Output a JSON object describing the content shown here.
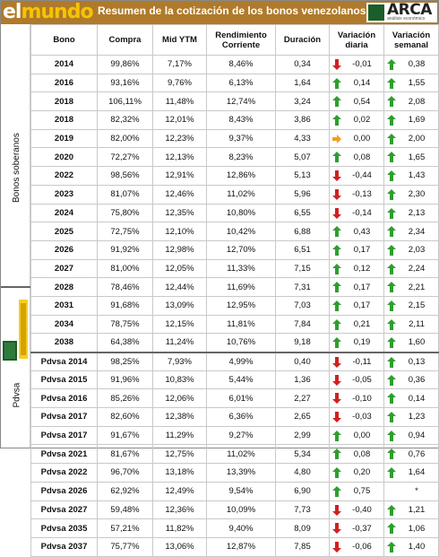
{
  "header": {
    "logo_el": "el",
    "logo_mundo": "mundo",
    "title": "Resumen de la cotización de los bonos venezolanos",
    "arca_label": "ARCA",
    "arca_sub": "análisis económico"
  },
  "columns": [
    "Bono",
    "Compra",
    "Mid YTM",
    "Rendimiento Corriente",
    "Duración",
    "Variación diaria",
    "Variación semanal"
  ],
  "groups": {
    "soberanos": "Bonos soberanos",
    "pdvsa": "Pdvsa"
  },
  "colors": {
    "up": "#2e9e2e",
    "down": "#d02020",
    "flat": "#f0a020",
    "header": "#b07a2a"
  },
  "rows": [
    {
      "bono": "2014",
      "compra": "99,86%",
      "ytm": "7,17%",
      "rend": "8,46%",
      "dur": "0,34",
      "vd_dir": "down",
      "vd": "-0,01",
      "vs_dir": "up",
      "vs": "0,38"
    },
    {
      "bono": "2016",
      "compra": "93,16%",
      "ytm": "9,76%",
      "rend": "6,13%",
      "dur": "1,64",
      "vd_dir": "up",
      "vd": "0,14",
      "vs_dir": "up",
      "vs": "1,55"
    },
    {
      "bono": "2018",
      "compra": "106,11%",
      "ytm": "11,48%",
      "rend": "12,74%",
      "dur": "3,24",
      "vd_dir": "up",
      "vd": "0,54",
      "vs_dir": "up",
      "vs": "2,08"
    },
    {
      "bono": "2018",
      "compra": "82,32%",
      "ytm": "12,01%",
      "rend": "8,43%",
      "dur": "3,86",
      "vd_dir": "up",
      "vd": "0,02",
      "vs_dir": "up",
      "vs": "1,69"
    },
    {
      "bono": "2019",
      "compra": "82,00%",
      "ytm": "12,23%",
      "rend": "9,37%",
      "dur": "4,33",
      "vd_dir": "flat",
      "vd": "0,00",
      "vs_dir": "up",
      "vs": "2,00"
    },
    {
      "bono": "2020",
      "compra": "72,27%",
      "ytm": "12,13%",
      "rend": "8,23%",
      "dur": "5,07",
      "vd_dir": "up",
      "vd": "0,08",
      "vs_dir": "up",
      "vs": "1,65"
    },
    {
      "bono": "2022",
      "compra": "98,56%",
      "ytm": "12,91%",
      "rend": "12,86%",
      "dur": "5,13",
      "vd_dir": "down",
      "vd": "-0,44",
      "vs_dir": "up",
      "vs": "1,43"
    },
    {
      "bono": "2023",
      "compra": "81,07%",
      "ytm": "12,46%",
      "rend": "11,02%",
      "dur": "5,96",
      "vd_dir": "down",
      "vd": "-0,13",
      "vs_dir": "up",
      "vs": "2,30"
    },
    {
      "bono": "2024",
      "compra": "75,80%",
      "ytm": "12,35%",
      "rend": "10,80%",
      "dur": "6,55",
      "vd_dir": "down",
      "vd": "-0,14",
      "vs_dir": "up",
      "vs": "2,13"
    },
    {
      "bono": "2025",
      "compra": "72,75%",
      "ytm": "12,10%",
      "rend": "10,42%",
      "dur": "6,88",
      "vd_dir": "up",
      "vd": "0,43",
      "vs_dir": "up",
      "vs": "2,34"
    },
    {
      "bono": "2026",
      "compra": "91,92%",
      "ytm": "12,98%",
      "rend": "12,70%",
      "dur": "6,51",
      "vd_dir": "up",
      "vd": "0,17",
      "vs_dir": "up",
      "vs": "2,03"
    },
    {
      "bono": "2027",
      "compra": "81,00%",
      "ytm": "12,05%",
      "rend": "11,33%",
      "dur": "7,15",
      "vd_dir": "up",
      "vd": "0,12",
      "vs_dir": "up",
      "vs": "2,24"
    },
    {
      "bono": "2028",
      "compra": "78,46%",
      "ytm": "12,44%",
      "rend": "11,69%",
      "dur": "7,31",
      "vd_dir": "up",
      "vd": "0,17",
      "vs_dir": "up",
      "vs": "2,21"
    },
    {
      "bono": "2031",
      "compra": "91,68%",
      "ytm": "13,09%",
      "rend": "12,95%",
      "dur": "7,03",
      "vd_dir": "up",
      "vd": "0,17",
      "vs_dir": "up",
      "vs": "2,15"
    },
    {
      "bono": "2034",
      "compra": "78,75%",
      "ytm": "12,15%",
      "rend": "11,81%",
      "dur": "7,84",
      "vd_dir": "up",
      "vd": "0,21",
      "vs_dir": "up",
      "vs": "2,11"
    },
    {
      "bono": "2038",
      "compra": "64,38%",
      "ytm": "11,24%",
      "rend": "10,76%",
      "dur": "9,18",
      "vd_dir": "up",
      "vd": "0,19",
      "vs_dir": "up",
      "vs": "1,60"
    },
    {
      "bono": "Pdvsa 2014",
      "compra": "98,25%",
      "ytm": "7,93%",
      "rend": "4,99%",
      "dur": "0,40",
      "vd_dir": "down",
      "vd": "-0,11",
      "vs_dir": "up",
      "vs": "0,13"
    },
    {
      "bono": "Pdvsa 2015",
      "compra": "91,96%",
      "ytm": "10,83%",
      "rend": "5,44%",
      "dur": "1,36",
      "vd_dir": "down",
      "vd": "-0,05",
      "vs_dir": "up",
      "vs": "0,36"
    },
    {
      "bono": "Pdvsa 2016",
      "compra": "85,26%",
      "ytm": "12,06%",
      "rend": "6,01%",
      "dur": "2,27",
      "vd_dir": "down",
      "vd": "-0,10",
      "vs_dir": "up",
      "vs": "0,14"
    },
    {
      "bono": "Pdvsa 2017",
      "compra": "82,60%",
      "ytm": "12,38%",
      "rend": "6,36%",
      "dur": "2,65",
      "vd_dir": "down",
      "vd": "-0,03",
      "vs_dir": "up",
      "vs": "1,23"
    },
    {
      "bono": "Pdvsa 2017",
      "compra": "91,67%",
      "ytm": "11,29%",
      "rend": "9,27%",
      "dur": "2,99",
      "vd_dir": "up",
      "vd": "0,00",
      "vs_dir": "up",
      "vs": "0,94"
    },
    {
      "bono": "Pdvsa 2021",
      "compra": "81,67%",
      "ytm": "12,75%",
      "rend": "11,02%",
      "dur": "5,34",
      "vd_dir": "up",
      "vd": "0,08",
      "vs_dir": "up",
      "vs": "0,76"
    },
    {
      "bono": "Pdvsa 2022",
      "compra": "96,70%",
      "ytm": "13,18%",
      "rend": "13,39%",
      "dur": "4,80",
      "vd_dir": "up",
      "vd": "0,20",
      "vs_dir": "up",
      "vs": "1,64"
    },
    {
      "bono": "Pdvsa 2026",
      "compra": "62,92%",
      "ytm": "12,49%",
      "rend": "9,54%",
      "dur": "6,90",
      "vd_dir": "up",
      "vd": "0,75",
      "vs_dir": "none",
      "vs": "*"
    },
    {
      "bono": "Pdvsa 2027",
      "compra": "59,48%",
      "ytm": "12,36%",
      "rend": "10,09%",
      "dur": "7,73",
      "vd_dir": "down",
      "vd": "-0,40",
      "vs_dir": "up",
      "vs": "1,21"
    },
    {
      "bono": "Pdvsa 2035",
      "compra": "57,21%",
      "ytm": "11,82%",
      "rend": "9,40%",
      "dur": "8,09",
      "vd_dir": "down",
      "vd": "-0,37",
      "vs_dir": "up",
      "vs": "1,06"
    },
    {
      "bono": "Pdvsa 2037",
      "compra": "75,77%",
      "ytm": "13,06%",
      "rend": "12,87%",
      "dur": "7,85",
      "vd_dir": "down",
      "vd": "-0,06",
      "vs_dir": "up",
      "vs": "1,40"
    }
  ]
}
